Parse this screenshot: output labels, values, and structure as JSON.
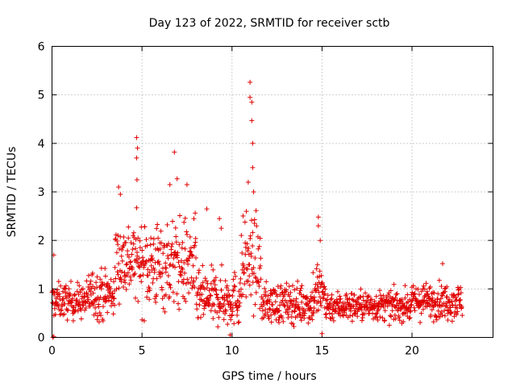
{
  "chart_data": {
    "type": "scatter",
    "title": "Day 123 of 2022, SRMTID for receiver sctb",
    "xlabel": "GPS time / hours",
    "ylabel": "SRMTID / TECUs",
    "xlim": [
      0,
      24.5
    ],
    "ylim": [
      0,
      6
    ],
    "xticks": [
      0,
      5,
      10,
      15,
      20
    ],
    "yticks": [
      0,
      1,
      2,
      3,
      4,
      5,
      6
    ],
    "grid": true,
    "marker": "plus",
    "color": "#e00000",
    "x_range_data": [
      0,
      22.8
    ],
    "segments": [
      {
        "x0": 0.0,
        "x1": 2.0,
        "base": 0.75,
        "spread": 0.35
      },
      {
        "x0": 2.0,
        "x1": 3.5,
        "base": 0.9,
        "spread": 0.5
      },
      {
        "x0": 3.5,
        "x1": 5.0,
        "base": 1.6,
        "spread": 0.8
      },
      {
        "x0": 5.0,
        "x1": 8.0,
        "base": 1.5,
        "spread": 0.9
      },
      {
        "x0": 8.0,
        "x1": 10.5,
        "base": 0.8,
        "spread": 0.55
      },
      {
        "x0": 10.5,
        "x1": 11.6,
        "base": 1.5,
        "spread": 0.9
      },
      {
        "x0": 11.6,
        "x1": 14.5,
        "base": 0.7,
        "spread": 0.4
      },
      {
        "x0": 14.5,
        "x1": 15.2,
        "base": 0.9,
        "spread": 0.6
      },
      {
        "x0": 15.2,
        "x1": 20.0,
        "base": 0.65,
        "spread": 0.3
      },
      {
        "x0": 20.0,
        "x1": 22.8,
        "base": 0.75,
        "spread": 0.35
      }
    ],
    "highlights": [
      {
        "x": 4.7,
        "y": 4.12
      },
      {
        "x": 4.75,
        "y": 3.9
      },
      {
        "x": 4.7,
        "y": 3.7
      },
      {
        "x": 4.72,
        "y": 3.25
      },
      {
        "x": 6.8,
        "y": 3.82
      },
      {
        "x": 6.95,
        "y": 3.27
      },
      {
        "x": 6.55,
        "y": 3.15
      },
      {
        "x": 7.5,
        "y": 3.15
      },
      {
        "x": 3.7,
        "y": 3.1
      },
      {
        "x": 3.8,
        "y": 2.95
      },
      {
        "x": 11.0,
        "y": 5.26
      },
      {
        "x": 11.0,
        "y": 4.95
      },
      {
        "x": 11.1,
        "y": 4.85
      },
      {
        "x": 11.1,
        "y": 4.47
      },
      {
        "x": 11.15,
        "y": 4.0
      },
      {
        "x": 11.15,
        "y": 3.5
      },
      {
        "x": 10.9,
        "y": 3.2
      },
      {
        "x": 11.2,
        "y": 3.0
      },
      {
        "x": 10.8,
        "y": 2.6
      },
      {
        "x": 14.8,
        "y": 2.48
      },
      {
        "x": 14.8,
        "y": 2.3
      },
      {
        "x": 14.9,
        "y": 2.0
      },
      {
        "x": 14.75,
        "y": 1.5
      },
      {
        "x": 8.6,
        "y": 2.65
      },
      {
        "x": 9.3,
        "y": 2.45
      },
      {
        "x": 9.4,
        "y": 2.25
      },
      {
        "x": 21.7,
        "y": 1.52
      },
      {
        "x": 0.1,
        "y": 1.7
      },
      {
        "x": 0.05,
        "y": 0.0
      },
      {
        "x": 0.1,
        "y": 0.02
      },
      {
        "x": 15.0,
        "y": 0.08
      },
      {
        "x": 9.9,
        "y": 0.05
      }
    ],
    "point_count": 1400
  }
}
